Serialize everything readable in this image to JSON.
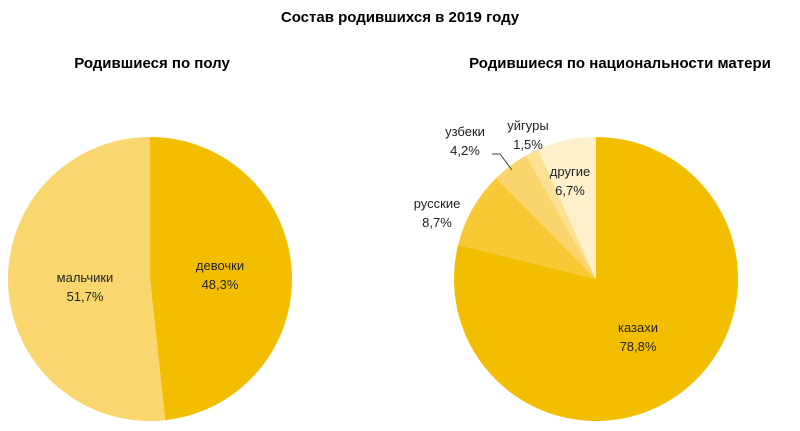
{
  "title": "Состав родившихся в 2019 году",
  "chart_data": [
    {
      "type": "pie",
      "title": "Родившиеся по полу",
      "start": "top",
      "direction": "clockwise",
      "slices": [
        {
          "label": "девочки",
          "value": 48.3,
          "text": "48,3%",
          "color": "#F4BE00"
        },
        {
          "label": "мальчики",
          "value": 51.7,
          "text": "51,7%",
          "color": "#F9D66E"
        }
      ]
    },
    {
      "type": "pie",
      "title": "Родившиеся по национальности матери",
      "start": "top",
      "direction": "clockwise",
      "slices": [
        {
          "label": "казахи",
          "value": 78.8,
          "text": "78,8%",
          "color": "#F4BE00"
        },
        {
          "label": "русские",
          "value": 8.7,
          "text": "8,7%",
          "color": "#F7C935"
        },
        {
          "label": "узбеки",
          "value": 4.2,
          "text": "4,2%",
          "color": "#F9D56C"
        },
        {
          "label": "уйгуры",
          "value": 1.5,
          "text": "1,5%",
          "color": "#FAE194"
        },
        {
          "label": "другие",
          "value": 6.7,
          "text": "6,7%",
          "color": "#FDF0CB"
        }
      ]
    }
  ]
}
